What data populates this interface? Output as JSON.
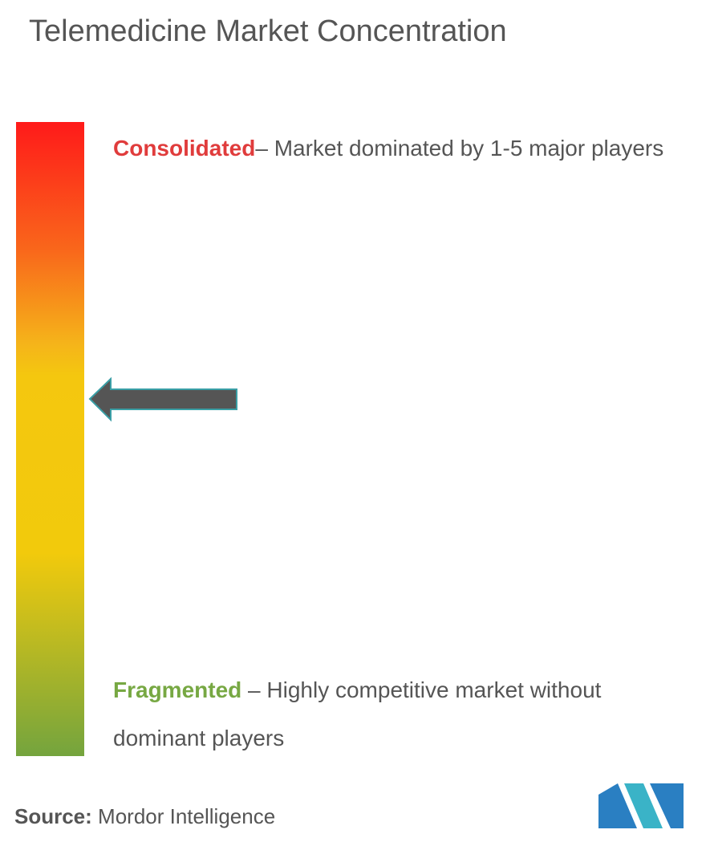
{
  "header": {
    "title": "Telemedicine Market Concentration"
  },
  "scale": {
    "top": {
      "label": "Consolidated",
      "description": "– Market dominated by 1-5 major players"
    },
    "bottom": {
      "label": "Fragmented",
      "description": "– Highly competitive market without dominant players"
    }
  },
  "footer": {
    "source_label": "Source:",
    "source": "Mordor Intelligence"
  }
}
